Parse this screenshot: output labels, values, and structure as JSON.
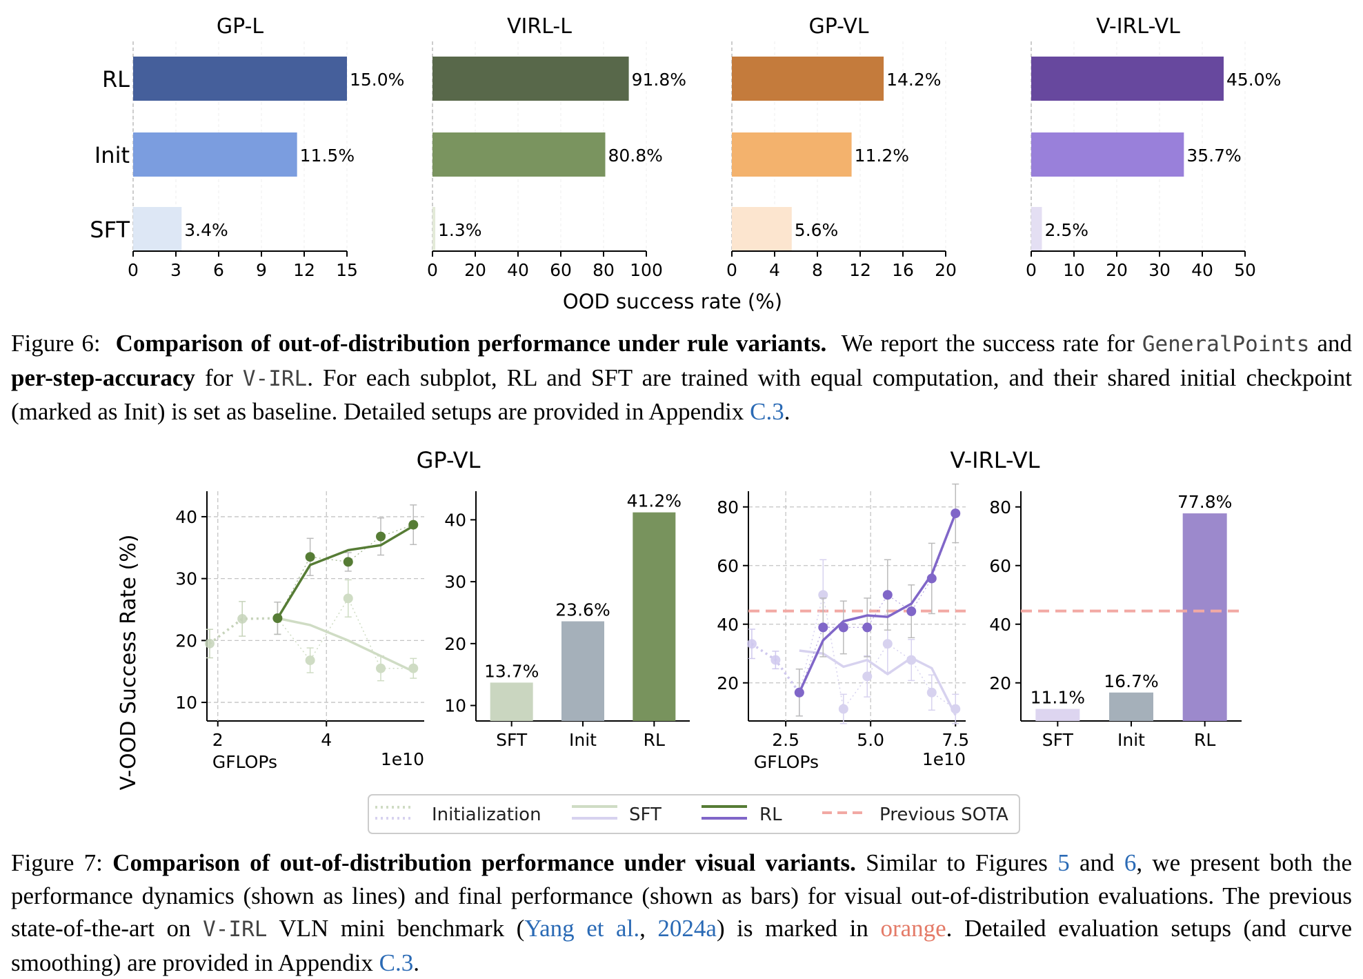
{
  "figure6": {
    "chart_data": {
      "type": "bar",
      "orientation": "horizontal",
      "categories": [
        "RL",
        "Init",
        "SFT"
      ],
      "xlabel": "OOD success rate (%)",
      "panels": [
        {
          "title": "GP-L",
          "values": [
            15.0,
            11.5,
            3.4
          ],
          "labels": [
            "15.0%",
            "11.5%",
            "3.4%"
          ],
          "xlim": [
            0,
            15
          ],
          "ticks": [
            "0",
            "3",
            "6",
            "9",
            "12",
            "15"
          ],
          "colors": [
            "#455f9b",
            "#7b9ddf",
            "#dde7f5"
          ]
        },
        {
          "title": "VIRL-L",
          "values": [
            91.8,
            80.8,
            1.3
          ],
          "labels": [
            "91.8%",
            "80.8%",
            "1.3%"
          ],
          "xlim": [
            0,
            100
          ],
          "ticks": [
            "0",
            "20",
            "40",
            "60",
            "80",
            "100"
          ],
          "colors": [
            "#58684a",
            "#7a945f",
            "#e3ead8"
          ]
        },
        {
          "title": "GP-VL",
          "values": [
            14.2,
            11.2,
            5.6
          ],
          "labels": [
            "14.2%",
            "11.2%",
            "5.6%"
          ],
          "xlim": [
            0,
            20
          ],
          "ticks": [
            "0",
            "4",
            "8",
            "12",
            "16",
            "20"
          ],
          "colors": [
            "#c47b3c",
            "#f3b26d",
            "#fce5cf"
          ]
        },
        {
          "title": "V-IRL-VL",
          "values": [
            45.0,
            35.7,
            2.5
          ],
          "labels": [
            "45.0%",
            "35.7%",
            "2.5%"
          ],
          "xlim": [
            0,
            50
          ],
          "ticks": [
            "0",
            "10",
            "20",
            "30",
            "40",
            "50"
          ],
          "colors": [
            "#67489e",
            "#9980da",
            "#e4dff3"
          ]
        }
      ]
    },
    "caption": {
      "label": "Figure 6:",
      "bold": "Comparison of out-of-distribution performance under rule variants.",
      "t1": "We report the success rate for",
      "mono1": "GeneralPoints",
      "t2": "and",
      "bold2": "per-step-accuracy",
      "t3": "for",
      "mono2": "V-IRL",
      "t4": ". For each subplot, RL and SFT are trained with equal computation, and their shared initial checkpoint (marked as Init) is set as baseline. Detailed setups are provided in Appendix",
      "link": "C.3",
      "t5": "."
    }
  },
  "figure7": {
    "ylabel": "V-OOD Success Rate (%)",
    "chart_data": [
      {
        "type": "line",
        "title": "GP-VL",
        "xlabel": "GFLOPs",
        "x_scale_note": "1e10",
        "xlim": [
          1.8,
          5.8
        ],
        "ylim": [
          7,
          43
        ],
        "xticks": [
          "2",
          "4"
        ],
        "yticks": [
          "10",
          "20",
          "30",
          "40"
        ],
        "init_series": {
          "x": [
            1.85,
            2.45,
            3.1
          ],
          "y": [
            19.5,
            23.5,
            23.6
          ],
          "err": [
            2.3,
            2.8,
            2.6
          ]
        },
        "sft_series": {
          "x": [
            3.1,
            3.7,
            4.4,
            5.0,
            5.6
          ],
          "y": [
            23.6,
            16.8,
            26.8,
            15.5,
            15.5
          ],
          "err": [
            2.6,
            2.0,
            3.0,
            2.0,
            1.6
          ],
          "smooth": [
            23.6,
            22.5,
            20.0,
            17.5,
            15.0
          ]
        },
        "rl_series": {
          "x": [
            3.1,
            3.7,
            4.4,
            5.0,
            5.6
          ],
          "y": [
            23.6,
            33.5,
            32.7,
            36.8,
            38.7
          ],
          "err": [
            2.6,
            3.0,
            1.5,
            3.0,
            3.2
          ],
          "smooth": [
            23.6,
            32.2,
            34.6,
            35.4,
            38.5
          ]
        }
      },
      {
        "type": "bar",
        "title": "GP-VL",
        "categories": [
          "SFT",
          "Init",
          "RL"
        ],
        "values": [
          13.7,
          23.6,
          41.2
        ],
        "labels": [
          "13.7%",
          "23.6%",
          "41.2%"
        ],
        "ylim": [
          7.5,
          43.5
        ],
        "yticks": [
          "10",
          "20",
          "30",
          "40"
        ],
        "colors": [
          "#cad6c0",
          "#a5b0ba",
          "#78935d"
        ]
      },
      {
        "type": "line",
        "title": "V-IRL-VL",
        "xlabel": "GFLOPs",
        "x_scale_note": "1e10",
        "xlim": [
          1.4,
          7.8
        ],
        "ylim": [
          7,
          83
        ],
        "xticks": [
          "2.5",
          "5.0",
          "7.5"
        ],
        "yticks": [
          "20",
          "40",
          "60",
          "80"
        ],
        "previous_sota": 44.5,
        "init_series": {
          "x": [
            1.5,
            2.2,
            2.9
          ],
          "y": [
            33.3,
            27.8,
            16.7
          ],
          "err": [
            5,
            3,
            8
          ]
        },
        "sft_series": {
          "x": [
            2.9,
            3.6,
            4.2,
            4.9,
            5.5,
            6.2,
            6.8,
            7.5
          ],
          "y": [
            16.7,
            50.0,
            11.1,
            22.2,
            33.3,
            27.8,
            16.7,
            11.1
          ],
          "err": [
            8,
            12,
            5,
            7,
            10,
            7,
            6,
            5
          ],
          "smooth": [
            31.0,
            30.0,
            25.5,
            27.8,
            23.0,
            28.5,
            25.0,
            9.0
          ]
        },
        "rl_series": {
          "x": [
            2.9,
            3.6,
            4.2,
            4.9,
            5.5,
            6.2,
            6.8,
            7.5
          ],
          "y": [
            16.7,
            38.9,
            38.9,
            38.9,
            50.0,
            44.4,
            55.6,
            77.8
          ],
          "err": [
            8,
            10,
            9,
            10,
            12,
            9,
            12,
            10
          ],
          "smooth": [
            16.7,
            34.5,
            41.0,
            43.0,
            42.5,
            47.0,
            57.0,
            77.8
          ]
        }
      },
      {
        "type": "bar",
        "title": "V-IRL-VL",
        "categories": [
          "SFT",
          "Init",
          "RL"
        ],
        "values": [
          11.1,
          16.7,
          77.8
        ],
        "labels": [
          "11.1%",
          "16.7%",
          "77.8%"
        ],
        "ylim": [
          7,
          83
        ],
        "yticks": [
          "20",
          "40",
          "60",
          "80"
        ],
        "previous_sota": 44.5,
        "colors": [
          "#ddd5f0",
          "#a5b0ba",
          "#9c89cc"
        ]
      }
    ],
    "legend": {
      "initialization": "Initialization",
      "sft": "SFT",
      "rl": "RL",
      "sota": "Previous SOTA"
    },
    "colors": {
      "gp_rl": "#567c35",
      "gp_sft": "#cfdcc4",
      "gp_init": "#c6d3ba",
      "virl_rl": "#8066c8",
      "virl_sft": "#d7d2ef",
      "virl_init": "#cfc8ee",
      "sota": "#f2a9a4"
    },
    "caption": {
      "label": "Figure 7:",
      "bold": "Comparison of out-of-distribution performance under visual variants.",
      "t1": "Similar to Figures",
      "link1": "5",
      "t2": "and",
      "link2": "6",
      "t3": ", we present both the performance dynamics (shown as lines) and final performance (shown as bars) for visual out-of-distribution evaluations. The previous state-of-the-art on",
      "mono": "V-IRL",
      "t4": "VLN mini benchmark (",
      "cite1": "Yang et al.",
      "t5": ",",
      "cite2": "2024a",
      "t6": ") is marked in",
      "orange": "orange",
      "t7": ". Detailed evaluation setups (and curve smoothing) are provided in Appendix",
      "link3": "C.3",
      "t8": "."
    }
  }
}
